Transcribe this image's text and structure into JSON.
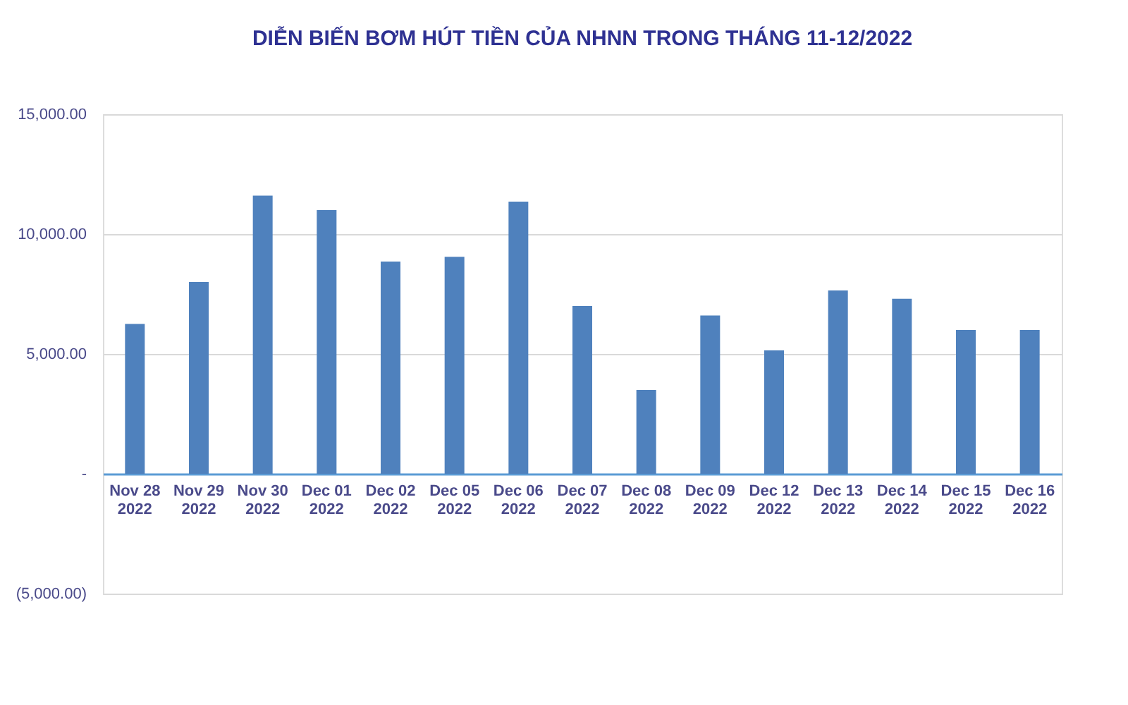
{
  "chart_data": {
    "type": "bar",
    "title": "DIỄN BIẾN BƠM HÚT TIỀN CỦA NHNN TRONG THÁNG 11-12/2022",
    "categories": [
      "Nov 28\n2022",
      "Nov 29\n2022",
      "Nov 30\n2022",
      "Dec 01\n2022",
      "Dec 02\n2022",
      "Dec 05\n2022",
      "Dec 06\n2022",
      "Dec 07\n2022",
      "Dec 08\n2022",
      "Dec 09\n2022",
      "Dec 12\n2022",
      "Dec 13\n2022",
      "Dec 14\n2022",
      "Dec 15\n2022",
      "Dec 16\n2022"
    ],
    "values": [
      6250,
      8000,
      11600,
      11000,
      8850,
      9050,
      11350,
      7000,
      3500,
      6600,
      5150,
      7650,
      7300,
      6000,
      6000
    ],
    "color": "#4f81bd",
    "ylim": [
      -5000,
      15000
    ],
    "yticks": [
      {
        "value": -5000,
        "label": "(5,000.00)"
      },
      {
        "value": 0,
        "label": "-"
      },
      {
        "value": 5000,
        "label": "5,000.00"
      },
      {
        "value": 10000,
        "label": "10,000.00"
      },
      {
        "value": 15000,
        "label": "15,000.00"
      }
    ],
    "grid": "y"
  }
}
